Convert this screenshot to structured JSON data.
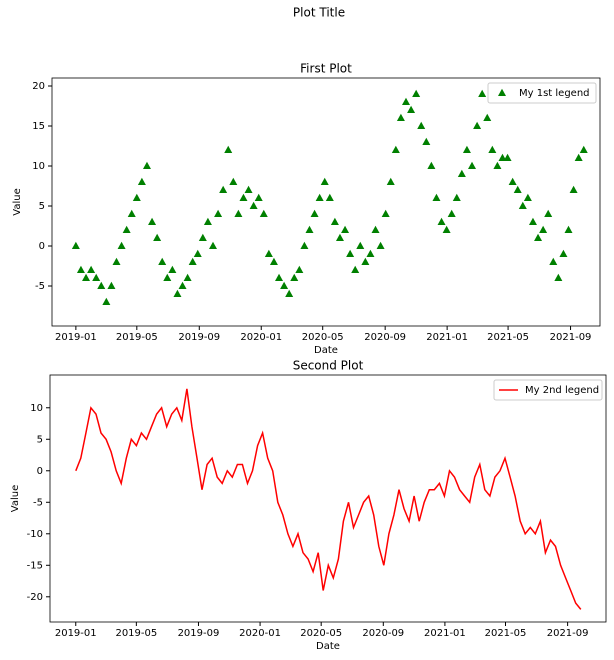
{
  "title": "Plot Title",
  "chart_data": [
    {
      "type": "scatter",
      "title": "First Plot",
      "xlabel": "Date",
      "ylabel": "Value",
      "x": [
        0,
        10,
        20,
        30,
        40,
        50,
        60,
        70,
        80,
        90,
        100,
        110,
        120,
        130,
        140,
        150,
        160,
        170,
        180,
        190,
        200,
        210,
        220,
        230,
        240,
        250,
        260,
        270,
        280,
        290,
        300,
        310,
        320,
        330,
        340,
        350,
        360,
        370,
        380,
        390,
        400,
        410,
        420,
        430,
        440,
        450,
        460,
        470,
        480,
        490,
        500,
        510,
        520,
        530,
        540,
        550,
        560,
        570,
        580,
        590,
        600,
        610,
        620,
        630,
        640,
        650,
        660,
        670,
        680,
        690,
        700,
        710,
        720,
        730,
        740,
        750,
        760,
        770,
        780,
        790,
        800,
        810,
        820,
        830,
        840,
        850,
        860,
        870,
        880,
        890,
        900,
        910,
        920,
        930,
        940,
        950,
        960,
        970,
        980,
        990,
        1000
      ],
      "series": [
        {
          "name": "My 1st legend",
          "color": "#008000",
          "marker": "triangle",
          "values": [
            0,
            -3,
            -4,
            -3,
            -4,
            -5,
            -7,
            -5,
            -2,
            0,
            2,
            4,
            6,
            8,
            10,
            3,
            1,
            -2,
            -4,
            -3,
            -6,
            -5,
            -4,
            -2,
            -1,
            1,
            3,
            0,
            4,
            7,
            12,
            8,
            4,
            6,
            7,
            5,
            6,
            4,
            -1,
            -2,
            -4,
            -5,
            -6,
            -4,
            -3,
            0,
            2,
            4,
            6,
            8,
            6,
            3,
            1,
            2,
            -1,
            -3,
            0,
            -2,
            -1,
            2,
            0,
            4,
            8,
            12,
            16,
            18,
            17,
            19,
            15,
            13,
            10,
            6,
            3,
            2,
            4,
            6,
            9,
            12,
            10,
            15,
            19,
            16,
            12,
            10,
            11,
            11,
            8,
            7,
            5,
            6,
            3,
            1,
            2,
            4,
            -2,
            -4,
            -1,
            2,
            7,
            11,
            12
          ]
        }
      ],
      "xlim": [
        -47,
        1032
      ],
      "xticks": [
        {
          "value": 0,
          "label": "2019-01"
        },
        {
          "value": 120,
          "label": "2019-05"
        },
        {
          "value": 243,
          "label": "2019-09"
        },
        {
          "value": 365,
          "label": "2020-01"
        },
        {
          "value": 486,
          "label": "2020-05"
        },
        {
          "value": 609,
          "label": "2020-09"
        },
        {
          "value": 731,
          "label": "2021-01"
        },
        {
          "value": 851,
          "label": "2021-05"
        },
        {
          "value": 974,
          "label": "2021-09"
        }
      ],
      "ylim": [
        -10,
        21
      ],
      "yticks": [
        -5,
        0,
        5,
        10,
        15,
        20
      ],
      "legend": "upper right"
    },
    {
      "type": "line",
      "title": "Second Plot",
      "xlabel": "Date",
      "ylabel": "Value",
      "x": [
        0,
        10,
        20,
        30,
        40,
        50,
        60,
        70,
        80,
        90,
        100,
        110,
        120,
        130,
        140,
        150,
        160,
        170,
        180,
        190,
        200,
        210,
        220,
        230,
        240,
        250,
        260,
        270,
        280,
        290,
        300,
        310,
        320,
        330,
        340,
        350,
        360,
        370,
        380,
        390,
        400,
        410,
        420,
        430,
        440,
        450,
        460,
        470,
        480,
        490,
        500,
        510,
        520,
        530,
        540,
        550,
        560,
        570,
        580,
        590,
        600,
        610,
        620,
        630,
        640,
        650,
        660,
        670,
        680,
        690,
        700,
        710,
        720,
        730,
        740,
        750,
        760,
        770,
        780,
        790,
        800,
        810,
        820,
        830,
        840,
        850,
        860,
        870,
        880,
        890,
        900,
        910,
        920,
        930,
        940,
        950,
        960,
        970,
        980,
        990,
        1000
      ],
      "series": [
        {
          "name": "My 2nd legend",
          "color": "#ff0000",
          "values": [
            0,
            2,
            6,
            10,
            9,
            6,
            5,
            3,
            0,
            -2,
            2,
            5,
            4,
            6,
            5,
            7,
            9,
            10,
            7,
            9,
            10,
            8,
            13,
            7,
            2,
            -3,
            1,
            2,
            -1,
            -2,
            0,
            -1,
            1,
            1,
            -2,
            0,
            4,
            6,
            2,
            0,
            -5,
            -7,
            -10,
            -12,
            -10,
            -13,
            -14,
            -16,
            -13,
            -19,
            -15,
            -17,
            -14,
            -8,
            -5,
            -9,
            -7,
            -5,
            -4,
            -7,
            -12,
            -15,
            -10,
            -7,
            -3,
            -6,
            -8,
            -4,
            -8,
            -5,
            -3,
            -3,
            -2,
            -4,
            0,
            -1,
            -3,
            -4,
            -5,
            -1,
            1,
            -3,
            -4,
            -1,
            0,
            2,
            -1,
            -4,
            -8,
            -10,
            -9,
            -10,
            -8,
            -13,
            -11,
            -12,
            -15,
            -17,
            -19,
            -21,
            -22
          ]
        }
      ],
      "xlim": [
        -51,
        1050
      ],
      "xticks": [
        {
          "value": 0,
          "label": "2019-01"
        },
        {
          "value": 120,
          "label": "2019-05"
        },
        {
          "value": 243,
          "label": "2019-09"
        },
        {
          "value": 365,
          "label": "2020-01"
        },
        {
          "value": 486,
          "label": "2020-05"
        },
        {
          "value": 609,
          "label": "2020-09"
        },
        {
          "value": 731,
          "label": "2021-01"
        },
        {
          "value": 851,
          "label": "2021-05"
        },
        {
          "value": 974,
          "label": "2021-09"
        }
      ],
      "ylim": [
        -24,
        15.2
      ],
      "yticks": [
        -20,
        -15,
        -10,
        -5,
        0,
        5,
        10
      ],
      "legend": "upper right"
    }
  ]
}
